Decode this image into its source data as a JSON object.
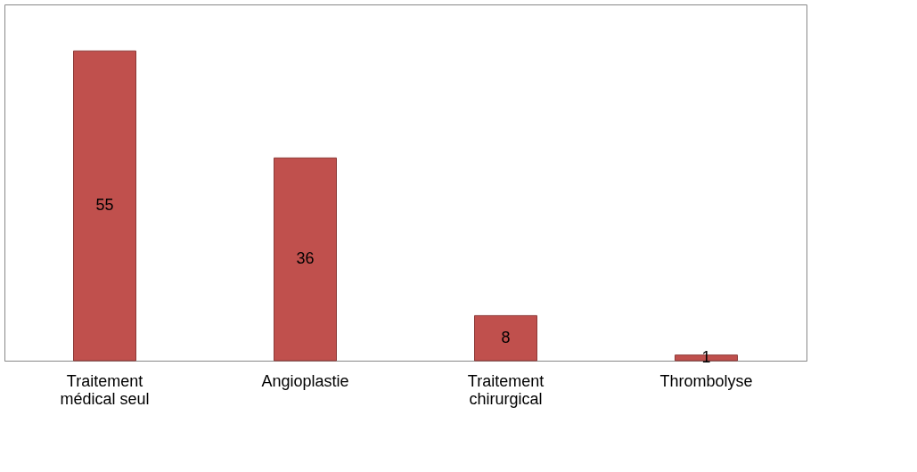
{
  "chart_data": {
    "type": "bar",
    "categories": [
      "Traitement médical seul",
      "Angioplastie",
      "Traitement chirurgical",
      "Thrombolyse"
    ],
    "values": [
      55,
      36,
      8,
      1
    ],
    "color": "#c0504d",
    "data_labels": true
  }
}
